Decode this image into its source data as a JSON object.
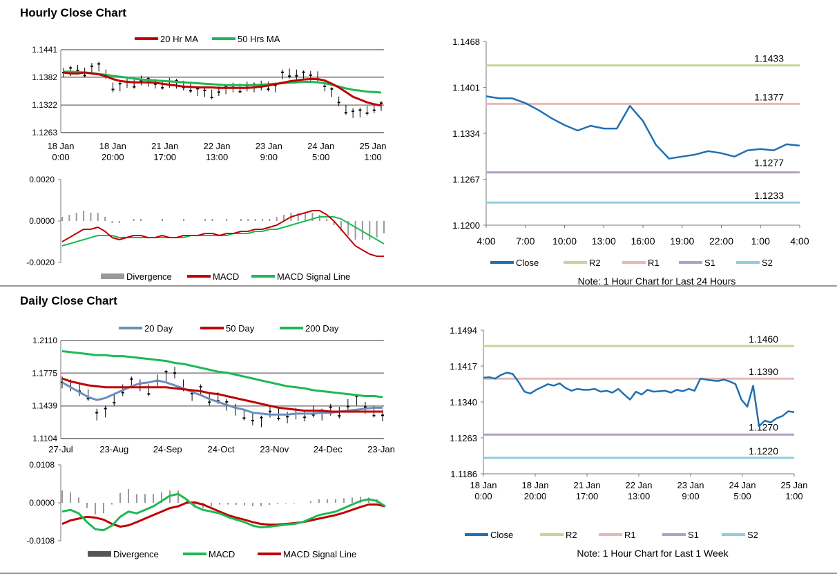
{
  "sections": {
    "hourly_title": "Hourly Close Chart",
    "daily_title": "Daily Close Chart"
  },
  "colors": {
    "ma20_hr": "#c00000",
    "ma50_hr": "#1db954",
    "close": "#1f6fb4",
    "r2": "#c4d79b",
    "r1": "#e6b9b8",
    "s1": "#b1a0c7",
    "s2": "#92cddc",
    "divergence": "#999999",
    "macd_red": "#c00000",
    "macd_green": "#1db954",
    "day20": "#6c8ebf",
    "day50": "#c00000",
    "day200": "#1db954",
    "candle": "#000000",
    "grid": "#999999"
  },
  "chart_data": [
    {
      "id": "hourly-price",
      "type": "line",
      "title": "Hourly Close Chart",
      "legend": [
        "20 Hr MA",
        "50 Hrs MA"
      ],
      "yticks": [
        "1.1441",
        "1.1382",
        "1.1322",
        "1.1263"
      ],
      "ylim": [
        1.1263,
        1.1441
      ],
      "xticks": [
        [
          "18 Jan",
          "0:00"
        ],
        [
          "18 Jan",
          "20:00"
        ],
        [
          "21 Jan",
          "17:00"
        ],
        [
          "22 Jan",
          "13:00"
        ],
        [
          "23 Jan",
          "9:00"
        ],
        [
          "24 Jan",
          "5:00"
        ],
        [
          "25 Jan",
          "1:00"
        ]
      ],
      "series": [
        {
          "name": "Price",
          "values": [
            1.1392,
            1.1395,
            1.1398,
            1.1392,
            1.1402,
            1.1405,
            1.1388,
            1.136,
            1.1362,
            1.137,
            1.1368,
            1.1375,
            1.1372,
            1.1368,
            1.1366,
            1.137,
            1.1368,
            1.1364,
            1.1358,
            1.1352,
            1.135,
            1.1345,
            1.1352,
            1.1356,
            1.136,
            1.1358,
            1.1362,
            1.136,
            1.1364,
            1.1362,
            1.136,
            1.1388,
            1.139,
            1.1388,
            1.1386,
            1.1385,
            1.1384,
            1.1362,
            1.135,
            1.133,
            1.1312,
            1.1305,
            1.1306,
            1.131,
            1.1315,
            1.132
          ]
        },
        {
          "name": "20 Hr MA",
          "values": [
            1.1392,
            1.139,
            1.139,
            1.1392,
            1.139,
            1.1388,
            1.1384,
            1.1378,
            1.1374,
            1.1372,
            1.1371,
            1.1371,
            1.1371,
            1.137,
            1.1368,
            1.1366,
            1.1364,
            1.1362,
            1.1361,
            1.136,
            1.136,
            1.136,
            1.1359,
            1.1359,
            1.1359,
            1.1359,
            1.1359,
            1.136,
            1.1362,
            1.1364,
            1.1367,
            1.137,
            1.1373,
            1.1375,
            1.1377,
            1.1378,
            1.1378,
            1.1375,
            1.1368,
            1.136,
            1.135,
            1.134,
            1.1334,
            1.1328,
            1.1324,
            1.1321
          ]
        },
        {
          "name": "50 Hrs MA",
          "values": [
            1.1394,
            1.1394,
            1.1393,
            1.1392,
            1.1391,
            1.1389,
            1.1387,
            1.1385,
            1.1383,
            1.1381,
            1.1379,
            1.1377,
            1.1376,
            1.1375,
            1.1374,
            1.1373,
            1.1372,
            1.1371,
            1.137,
            1.1369,
            1.1368,
            1.1367,
            1.1366,
            1.1365,
            1.1365,
            1.1365,
            1.1365,
            1.1365,
            1.1366,
            1.1367,
            1.1368,
            1.1369,
            1.137,
            1.1371,
            1.1372,
            1.1372,
            1.1371,
            1.1369,
            1.1366,
            1.1362,
            1.1358,
            1.1355,
            1.1353,
            1.1351,
            1.135,
            1.1349
          ]
        }
      ]
    },
    {
      "id": "hourly-macd",
      "type": "line",
      "legend": [
        "Divergence",
        "MACD",
        "MACD Signal Line"
      ],
      "yticks": [
        "0.0020",
        "0.0000",
        "-0.0020"
      ],
      "ylim": [
        -0.002,
        0.002
      ],
      "series": [
        {
          "name": "MACD",
          "values": [
            -0.001,
            -0.0008,
            -0.0006,
            -0.0004,
            -0.0004,
            -0.0003,
            -0.0005,
            -0.0008,
            -0.0009,
            -0.0008,
            -0.0007,
            -0.0007,
            -0.0008,
            -0.0008,
            -0.0007,
            -0.0008,
            -0.0008,
            -0.0007,
            -0.0007,
            -0.0007,
            -0.0006,
            -0.0006,
            -0.0007,
            -0.0006,
            -0.0006,
            -0.0005,
            -0.0005,
            -0.0004,
            -0.0004,
            -0.0003,
            -0.0002,
            0.0,
            0.0002,
            0.0003,
            0.0004,
            0.0005,
            0.0005,
            0.0003,
            0.0,
            -0.0004,
            -0.0008,
            -0.0012,
            -0.0014,
            -0.0016,
            -0.0017,
            -0.0017
          ]
        },
        {
          "name": "MACD Signal Line",
          "values": [
            -0.0012,
            -0.0011,
            -0.001,
            -0.0009,
            -0.0008,
            -0.0007,
            -0.0007,
            -0.0007,
            -0.0008,
            -0.0008,
            -0.0008,
            -0.0008,
            -0.0008,
            -0.0008,
            -0.0008,
            -0.0008,
            -0.0008,
            -0.0008,
            -0.0007,
            -0.0007,
            -0.0007,
            -0.0007,
            -0.0007,
            -0.0007,
            -0.0006,
            -0.0006,
            -0.0006,
            -0.0005,
            -0.0005,
            -0.0004,
            -0.0004,
            -0.0003,
            -0.0002,
            -0.0001,
            0.0,
            0.0001,
            0.0002,
            0.0002,
            0.0002,
            0.0001,
            -0.0001,
            -0.0003,
            -0.0005,
            -0.0007,
            -0.0009,
            -0.0011
          ]
        }
      ]
    },
    {
      "id": "hourly-24h",
      "type": "line",
      "note": "Note: 1 Hour Chart for Last 24 Hours",
      "legend": [
        "Close",
        "R2",
        "R1",
        "S1",
        "S2"
      ],
      "yticks": [
        "1.1468",
        "1.1401",
        "1.1334",
        "1.1267",
        "1.1200"
      ],
      "ylim": [
        1.12,
        1.1468
      ],
      "xticks": [
        "4:00",
        "7:00",
        "10:00",
        "13:00",
        "16:00",
        "19:00",
        "22:00",
        "1:00",
        "4:00"
      ],
      "levels": [
        {
          "name": "R2",
          "value": 1.1433,
          "label": "1.1433"
        },
        {
          "name": "R1",
          "value": 1.1377,
          "label": "1.1377"
        },
        {
          "name": "S1",
          "value": 1.1277,
          "label": "1.1277"
        },
        {
          "name": "S2",
          "value": 1.1233,
          "label": "1.1233"
        }
      ],
      "series": [
        {
          "name": "Close",
          "values": [
            1.1388,
            1.1385,
            1.1385,
            1.1378,
            1.1368,
            1.1356,
            1.1346,
            1.1338,
            1.1345,
            1.1341,
            1.1341,
            1.1374,
            1.1352,
            1.1317,
            1.1297,
            1.13,
            1.1303,
            1.1308,
            1.1305,
            1.13,
            1.1309,
            1.1311,
            1.1309,
            1.1318,
            1.1316
          ]
        }
      ]
    },
    {
      "id": "daily-price",
      "type": "line",
      "title": "Daily Close Chart",
      "legend": [
        "20 Day",
        "50 Day",
        "200 Day"
      ],
      "yticks": [
        "1.2110",
        "1.1775",
        "1.1439",
        "1.1104"
      ],
      "ylim": [
        1.1104,
        1.211
      ],
      "xticks": [
        "27-Jul",
        "23-Aug",
        "24-Sep",
        "24-Oct",
        "23-Nov",
        "24-Dec",
        "23-Jan"
      ],
      "series": [
        {
          "name": "Price",
          "values": [
            1.168,
            1.165,
            1.16,
            1.155,
            1.135,
            1.138,
            1.15,
            1.16,
            1.168,
            1.165,
            1.16,
            1.17,
            1.175,
            1.178,
            1.165,
            1.155,
            1.16,
            1.15,
            1.152,
            1.145,
            1.14,
            1.135,
            1.13,
            1.128,
            1.138,
            1.135,
            1.132,
            1.136,
            1.134,
            1.138,
            1.135,
            1.14,
            1.137,
            1.145,
            1.15,
            1.142,
            1.138,
            1.134
          ]
        },
        {
          "name": "20 Day",
          "values": [
            1.168,
            1.163,
            1.158,
            1.153,
            1.15,
            1.152,
            1.156,
            1.16,
            1.164,
            1.167,
            1.168,
            1.17,
            1.168,
            1.165,
            1.162,
            1.158,
            1.155,
            1.151,
            1.148,
            1.145,
            1.142,
            1.14,
            1.137,
            1.136,
            1.135,
            1.135,
            1.135,
            1.136,
            1.136,
            1.136,
            1.137,
            1.137,
            1.138,
            1.139,
            1.14,
            1.141,
            1.142,
            1.142
          ]
        },
        {
          "name": "50 Day",
          "values": [
            1.172,
            1.169,
            1.167,
            1.165,
            1.164,
            1.163,
            1.163,
            1.163,
            1.163,
            1.163,
            1.163,
            1.163,
            1.163,
            1.162,
            1.161,
            1.16,
            1.159,
            1.157,
            1.156,
            1.154,
            1.152,
            1.15,
            1.148,
            1.146,
            1.144,
            1.142,
            1.141,
            1.14,
            1.139,
            1.139,
            1.139,
            1.138,
            1.138,
            1.138,
            1.138,
            1.138,
            1.138,
            1.138
          ]
        },
        {
          "name": "200 Day",
          "values": [
            1.2,
            1.199,
            1.198,
            1.197,
            1.196,
            1.196,
            1.195,
            1.195,
            1.194,
            1.193,
            1.192,
            1.191,
            1.19,
            1.188,
            1.187,
            1.185,
            1.183,
            1.181,
            1.179,
            1.178,
            1.176,
            1.174,
            1.172,
            1.17,
            1.168,
            1.166,
            1.164,
            1.163,
            1.162,
            1.16,
            1.159,
            1.158,
            1.157,
            1.156,
            1.155,
            1.154,
            1.154,
            1.153
          ]
        }
      ]
    },
    {
      "id": "daily-macd",
      "type": "line",
      "legend": [
        "Divergence",
        "MACD",
        "MACD Signal Line"
      ],
      "yticks": [
        "0.0108",
        "0.0000",
        "-0.0108"
      ],
      "ylim": [
        -0.0108,
        0.0108
      ],
      "series": [
        {
          "name": "MACD",
          "values": [
            -0.0025,
            -0.002,
            -0.003,
            -0.0055,
            -0.0075,
            -0.0078,
            -0.0065,
            -0.004,
            -0.0025,
            -0.003,
            -0.002,
            -0.001,
            0.0005,
            0.002,
            0.0025,
            0.001,
            -0.001,
            -0.002,
            -0.0025,
            -0.003,
            -0.004,
            -0.0048,
            -0.0055,
            -0.0065,
            -0.007,
            -0.0068,
            -0.0065,
            -0.0062,
            -0.006,
            -0.0055,
            -0.0045,
            -0.0035,
            -0.003,
            -0.0025,
            -0.0015,
            -0.0005,
            0.0005,
            0.001,
            0.0005,
            -0.001
          ]
        },
        {
          "name": "MACD Signal Line",
          "values": [
            -0.006,
            -0.005,
            -0.0045,
            -0.004,
            -0.0042,
            -0.0048,
            -0.006,
            -0.0068,
            -0.0064,
            -0.0055,
            -0.0045,
            -0.0035,
            -0.0025,
            -0.0015,
            -0.001,
            0.0,
            0.0001,
            -0.0005,
            -0.0015,
            -0.0025,
            -0.0035,
            -0.0042,
            -0.0048,
            -0.0055,
            -0.006,
            -0.0062,
            -0.0062,
            -0.006,
            -0.0058,
            -0.0055,
            -0.005,
            -0.0045,
            -0.004,
            -0.0035,
            -0.0028,
            -0.002,
            -0.0012,
            -0.0005,
            -0.0005,
            -0.001
          ]
        }
      ]
    },
    {
      "id": "weekly",
      "type": "line",
      "note": "Note: 1 Hour Chart for Last 1 Week",
      "legend": [
        "Close",
        "R2",
        "R1",
        "S1",
        "S2"
      ],
      "yticks": [
        "1.1494",
        "1.1417",
        "1.1340",
        "1.1263",
        "1.1186"
      ],
      "ylim": [
        1.1186,
        1.1494
      ],
      "xticks": [
        [
          "18 Jan",
          "0:00"
        ],
        [
          "18 Jan",
          "20:00"
        ],
        [
          "21 Jan",
          "17:00"
        ],
        [
          "22 Jan",
          "13:00"
        ],
        [
          "23 Jan",
          "9:00"
        ],
        [
          "24 Jan",
          "5:00"
        ],
        [
          "25 Jan",
          "1:00"
        ]
      ],
      "levels": [
        {
          "name": "R2",
          "value": 1.146,
          "label": "1.1460"
        },
        {
          "name": "R1",
          "value": 1.139,
          "label": "1.1390"
        },
        {
          "name": "S1",
          "value": 1.127,
          "label": "1.1270"
        },
        {
          "name": "S2",
          "value": 1.122,
          "label": "1.1220"
        }
      ],
      "series": [
        {
          "name": "Close",
          "values": [
            1.1392,
            1.1393,
            1.139,
            1.1398,
            1.1403,
            1.14,
            1.1383,
            1.1362,
            1.1358,
            1.1366,
            1.1372,
            1.1378,
            1.1375,
            1.138,
            1.137,
            1.1364,
            1.1368,
            1.1366,
            1.1366,
            1.1368,
            1.1362,
            1.1364,
            1.136,
            1.1368,
            1.1356,
            1.1345,
            1.1362,
            1.1356,
            1.1366,
            1.1362,
            1.1363,
            1.1364,
            1.136,
            1.1366,
            1.1363,
            1.1368,
            1.1364,
            1.139,
            1.1388,
            1.1386,
            1.1385,
            1.1388,
            1.1384,
            1.1378,
            1.1345,
            1.133,
            1.1375,
            1.1288,
            1.13,
            1.1296,
            1.1305,
            1.131,
            1.132,
            1.1318
          ]
        }
      ]
    }
  ],
  "legend_labels": {
    "hp": [
      "20 Hr MA",
      "50 Hrs MA"
    ],
    "hm": [
      "Divergence",
      "MACD",
      "MACD Signal Line"
    ],
    "r24": [
      "Close",
      "R2",
      "R1",
      "S1",
      "S2"
    ],
    "dp": [
      "20 Day",
      "50 Day",
      "200 Day"
    ],
    "dm": [
      "Divergence",
      "MACD",
      "MACD Signal Line"
    ],
    "wk": [
      "Close",
      "R2",
      "R1",
      "S1",
      "S2"
    ]
  }
}
